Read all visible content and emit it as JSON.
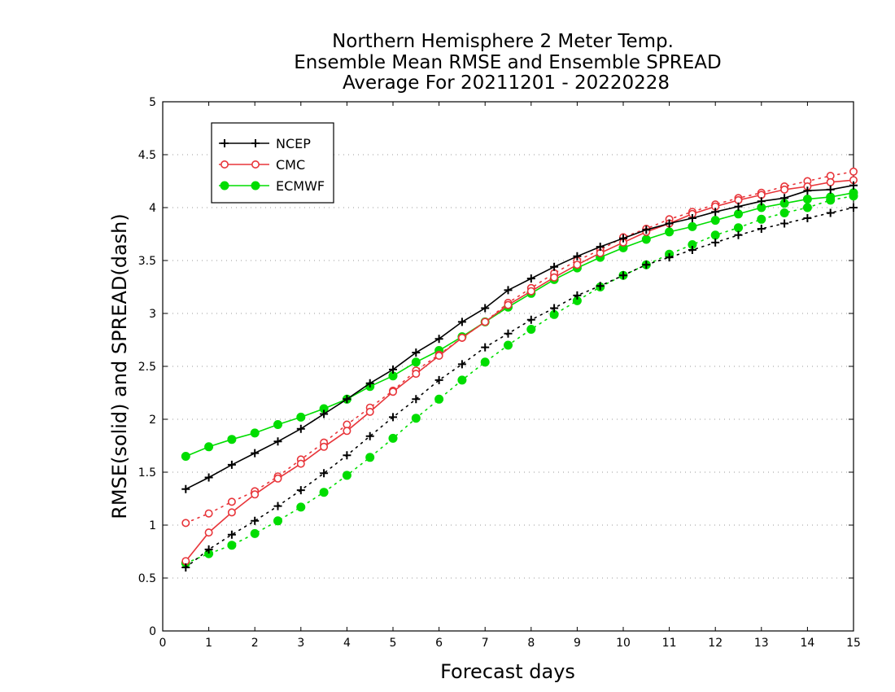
{
  "chart_data": {
    "type": "line",
    "title": [
      "Northern Hemisphere 2 Meter Temp.",
      "Ensemble Mean RMSE and Ensemble SPREAD",
      "Average For 20211201 - 20220228"
    ],
    "xlabel": "Forecast days",
    "ylabel": "RMSE(solid) and SPREAD(dash)",
    "xlim": [
      0,
      15
    ],
    "ylim": [
      0,
      5
    ],
    "x_ticks": [
      "0",
      "1",
      "2",
      "3",
      "4",
      "5",
      "6",
      "7",
      "8",
      "9",
      "10",
      "11",
      "12",
      "13",
      "14",
      "15"
    ],
    "y_ticks": [
      "0",
      "0.5",
      "1",
      "1.5",
      "2",
      "2.5",
      "3",
      "3.5",
      "4",
      "4.5",
      "5"
    ],
    "y_grid": true,
    "legend_position": "top-left",
    "x": [
      0.5,
      1,
      1.5,
      2,
      2.5,
      3,
      3.5,
      4,
      4.5,
      5,
      5.5,
      6,
      6.5,
      7,
      7.5,
      8,
      8.5,
      9,
      9.5,
      10,
      10.5,
      11,
      11.5,
      12,
      12.5,
      13,
      13.5,
      14,
      14.5,
      15
    ],
    "series": [
      {
        "name": "NCEP",
        "color": "#000000",
        "marker": "plus",
        "rmse": [
          1.34,
          1.45,
          1.57,
          1.68,
          1.79,
          1.91,
          2.05,
          2.19,
          2.34,
          2.47,
          2.63,
          2.76,
          2.92,
          3.05,
          3.22,
          3.33,
          3.44,
          3.54,
          3.63,
          3.71,
          3.79,
          3.85,
          3.9,
          3.96,
          4.01,
          4.06,
          4.09,
          4.16,
          4.17,
          4.21
        ],
        "spread": [
          0.6,
          0.77,
          0.91,
          1.04,
          1.18,
          1.33,
          1.49,
          1.66,
          1.84,
          2.02,
          2.19,
          2.37,
          2.52,
          2.68,
          2.81,
          2.94,
          3.05,
          3.17,
          3.26,
          3.36,
          3.46,
          3.53,
          3.6,
          3.67,
          3.74,
          3.8,
          3.85,
          3.9,
          3.95,
          4.0
        ]
      },
      {
        "name": "CMC",
        "color": "#e8353a",
        "marker": "open-circle",
        "rmse": [
          0.66,
          0.93,
          1.12,
          1.29,
          1.44,
          1.58,
          1.74,
          1.89,
          2.07,
          2.26,
          2.43,
          2.6,
          2.77,
          2.92,
          3.08,
          3.21,
          3.34,
          3.46,
          3.57,
          3.67,
          3.77,
          3.85,
          3.94,
          4.01,
          4.07,
          4.12,
          4.17,
          4.2,
          4.24,
          4.26
        ],
        "spread": [
          1.02,
          1.11,
          1.22,
          1.32,
          1.46,
          1.62,
          1.78,
          1.95,
          2.11,
          2.27,
          2.46,
          2.61,
          2.77,
          2.92,
          3.1,
          3.24,
          3.38,
          3.5,
          3.6,
          3.72,
          3.8,
          3.89,
          3.96,
          4.03,
          4.09,
          4.14,
          4.2,
          4.25,
          4.3,
          4.34
        ]
      },
      {
        "name": "ECMWF",
        "color": "#00dd00",
        "marker": "filled-circle",
        "rmse": [
          1.65,
          1.74,
          1.81,
          1.87,
          1.95,
          2.02,
          2.1,
          2.19,
          2.31,
          2.41,
          2.54,
          2.65,
          2.78,
          2.92,
          3.06,
          3.19,
          3.32,
          3.43,
          3.53,
          3.62,
          3.7,
          3.77,
          3.82,
          3.88,
          3.94,
          4.0,
          4.04,
          4.08,
          4.1,
          4.14
        ],
        "spread": [
          0.64,
          0.73,
          0.81,
          0.92,
          1.04,
          1.17,
          1.31,
          1.47,
          1.64,
          1.82,
          2.01,
          2.19,
          2.37,
          2.54,
          2.7,
          2.85,
          2.99,
          3.12,
          3.25,
          3.36,
          3.46,
          3.56,
          3.65,
          3.74,
          3.81,
          3.89,
          3.95,
          4.0,
          4.07,
          4.11
        ]
      }
    ]
  }
}
